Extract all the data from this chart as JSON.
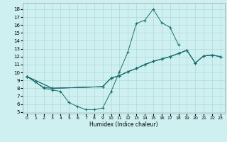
{
  "xlabel": "Humidex (Indice chaleur)",
  "background_color": "#cff0f0",
  "grid_color": "#aed8d8",
  "line_color": "#1a6e6e",
  "xlim": [
    -0.5,
    23.5
  ],
  "ylim": [
    4.8,
    18.8
  ],
  "xticks": [
    0,
    1,
    2,
    3,
    4,
    5,
    6,
    7,
    8,
    9,
    10,
    11,
    12,
    13,
    14,
    15,
    16,
    17,
    18,
    19,
    20,
    21,
    22,
    23
  ],
  "yticks": [
    5,
    6,
    7,
    8,
    9,
    10,
    11,
    12,
    13,
    14,
    15,
    16,
    17,
    18
  ],
  "curve1_x": [
    0,
    1,
    2,
    3,
    4,
    5,
    6,
    7,
    8,
    9,
    10,
    11,
    12,
    13,
    14,
    15,
    16,
    17,
    18
  ],
  "curve1_y": [
    9.5,
    8.8,
    8.0,
    7.8,
    7.6,
    6.2,
    5.7,
    5.3,
    5.3,
    5.5,
    7.6,
    10.1,
    12.6,
    16.2,
    16.6,
    18.0,
    16.3,
    15.7,
    13.5
  ],
  "curve2_x": [
    0,
    1,
    2,
    3,
    9,
    10,
    11,
    12,
    13,
    14,
    15,
    16,
    17,
    18,
    19,
    20,
    21,
    22,
    23
  ],
  "curve2_y": [
    9.5,
    8.8,
    8.1,
    8.0,
    8.2,
    9.3,
    9.6,
    10.1,
    10.5,
    11.0,
    11.4,
    11.7,
    12.0,
    12.4,
    12.8,
    11.2,
    12.1,
    12.2,
    12.0
  ],
  "curve3_x": [
    0,
    3,
    9,
    10,
    11,
    12,
    13,
    14,
    15,
    16,
    17,
    18,
    19,
    20,
    21,
    22,
    23
  ],
  "curve3_y": [
    9.5,
    8.0,
    8.2,
    9.3,
    9.6,
    10.1,
    10.5,
    11.0,
    11.4,
    11.7,
    12.0,
    12.4,
    12.8,
    11.2,
    12.1,
    12.2,
    12.0
  ],
  "curve4_x": [
    0,
    3,
    9,
    10,
    11,
    12,
    13,
    14,
    15,
    16,
    17,
    18,
    19,
    20,
    21,
    22,
    23
  ],
  "curve4_y": [
    9.5,
    8.0,
    8.2,
    9.3,
    9.6,
    10.1,
    10.5,
    11.0,
    11.4,
    11.7,
    12.0,
    12.4,
    12.8,
    11.2,
    12.1,
    12.2,
    12.0
  ]
}
